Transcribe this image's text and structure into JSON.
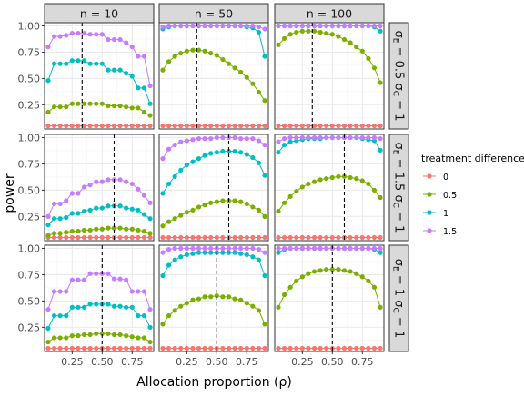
{
  "chart_data": {
    "type": "line",
    "facet_cols": [
      "n = 10",
      "n = 50",
      "n = 100"
    ],
    "facet_rows": [
      {
        "sigma_e": "0.5",
        "sigma_c": "1"
      },
      {
        "sigma_e": "1.5",
        "sigma_c": "1"
      },
      {
        "sigma_e": "1",
        "sigma_c": "1"
      }
    ],
    "xlabel": "Allocation proportion (ρ)",
    "ylabel": "power",
    "x": [
      0.05,
      0.1,
      0.15,
      0.2,
      0.25,
      0.3,
      0.35,
      0.4,
      0.45,
      0.5,
      0.55,
      0.6,
      0.65,
      0.7,
      0.75,
      0.8,
      0.85,
      0.9
    ],
    "xlim": [
      0.02,
      0.93
    ],
    "ylim": [
      0.02,
      1.03
    ],
    "xticks": [
      "0.25",
      "0.50",
      "0.75"
    ],
    "yticks": [
      "0.25",
      "0.50",
      "0.75",
      "1.00"
    ],
    "grid": true,
    "legend": {
      "title": "treatment difference",
      "position": "right",
      "entries": [
        "0",
        "0.5",
        "1",
        "1.5"
      ]
    },
    "colors": {
      "0": "#F8766D",
      "0.5": "#7CAE00",
      "1": "#00BFC4",
      "1.5": "#C77CFF",
      "strip": "#D9D9D9",
      "grid": "#EBEBEB",
      "border": "#333333"
    },
    "panels": [
      {
        "row": 0,
        "col": 0,
        "vline": 0.333,
        "series": [
          {
            "name": "0",
            "values": [
              0.05,
              0.05,
              0.05,
              0.05,
              0.05,
              0.05,
              0.05,
              0.05,
              0.05,
              0.05,
              0.05,
              0.05,
              0.05,
              0.05,
              0.05,
              0.05,
              0.05,
              0.05
            ]
          },
          {
            "name": "0.5",
            "values": [
              0.18,
              0.23,
              0.23,
              0.23,
              0.26,
              0.26,
              0.26,
              0.26,
              0.26,
              0.26,
              0.24,
              0.24,
              0.24,
              0.23,
              0.22,
              0.22,
              0.18,
              0.15
            ]
          },
          {
            "name": "1",
            "values": [
              0.48,
              0.64,
              0.64,
              0.64,
              0.67,
              0.67,
              0.67,
              0.64,
              0.64,
              0.64,
              0.58,
              0.58,
              0.58,
              0.55,
              0.52,
              0.41,
              0.41,
              0.26
            ]
          },
          {
            "name": "1.5",
            "values": [
              0.8,
              0.9,
              0.9,
              0.91,
              0.93,
              0.93,
              0.93,
              0.92,
              0.92,
              0.92,
              0.87,
              0.87,
              0.87,
              0.84,
              0.8,
              0.71,
              0.71,
              0.43
            ]
          }
        ]
      },
      {
        "row": 0,
        "col": 1,
        "vline": 0.333,
        "series": [
          {
            "name": "0",
            "values": [
              0.05,
              0.05,
              0.05,
              0.05,
              0.05,
              0.05,
              0.05,
              0.05,
              0.05,
              0.05,
              0.05,
              0.05,
              0.05,
              0.05,
              0.05,
              0.05,
              0.05,
              0.05
            ]
          },
          {
            "name": "0.5",
            "values": [
              0.58,
              0.66,
              0.71,
              0.74,
              0.76,
              0.77,
              0.77,
              0.76,
              0.74,
              0.72,
              0.68,
              0.64,
              0.6,
              0.56,
              0.51,
              0.45,
              0.37,
              0.29
            ]
          },
          {
            "name": "1",
            "values": [
              0.97,
              0.99,
              1.0,
              1.0,
              1.0,
              1.0,
              1.0,
              1.0,
              1.0,
              1.0,
              1.0,
              1.0,
              1.0,
              1.0,
              0.99,
              0.98,
              0.94,
              0.71
            ]
          },
          {
            "name": "1.5",
            "values": [
              0.99,
              1.0,
              1.0,
              1.0,
              1.0,
              1.0,
              1.0,
              1.0,
              1.0,
              1.0,
              1.0,
              1.0,
              1.0,
              1.0,
              1.0,
              1.0,
              0.99,
              0.97
            ]
          }
        ]
      },
      {
        "row": 0,
        "col": 2,
        "vline": 0.333,
        "series": [
          {
            "name": "0",
            "values": [
              0.05,
              0.05,
              0.05,
              0.05,
              0.05,
              0.05,
              0.05,
              0.05,
              0.05,
              0.05,
              0.05,
              0.05,
              0.05,
              0.05,
              0.05,
              0.05,
              0.05,
              0.05
            ]
          },
          {
            "name": "0.5",
            "values": [
              0.82,
              0.88,
              0.92,
              0.94,
              0.95,
              0.95,
              0.95,
              0.94,
              0.93,
              0.92,
              0.9,
              0.87,
              0.84,
              0.8,
              0.76,
              0.69,
              0.6,
              0.46
            ]
          },
          {
            "name": "1",
            "values": [
              1.0,
              1.0,
              1.0,
              1.0,
              1.0,
              1.0,
              1.0,
              1.0,
              1.0,
              1.0,
              1.0,
              1.0,
              1.0,
              1.0,
              1.0,
              1.0,
              0.99,
              0.95
            ]
          },
          {
            "name": "1.5",
            "values": [
              1.0,
              1.0,
              1.0,
              1.0,
              1.0,
              1.0,
              1.0,
              1.0,
              1.0,
              1.0,
              1.0,
              1.0,
              1.0,
              1.0,
              1.0,
              1.0,
              1.0,
              1.0
            ]
          }
        ]
      },
      {
        "row": 1,
        "col": 0,
        "vline": 0.6,
        "series": [
          {
            "name": "0",
            "values": [
              0.05,
              0.05,
              0.05,
              0.05,
              0.05,
              0.05,
              0.05,
              0.05,
              0.05,
              0.05,
              0.05,
              0.05,
              0.05,
              0.05,
              0.05,
              0.05,
              0.05,
              0.05
            ]
          },
          {
            "name": "0.5",
            "values": [
              0.07,
              0.09,
              0.09,
              0.1,
              0.11,
              0.11,
              0.12,
              0.12,
              0.13,
              0.13,
              0.14,
              0.14,
              0.14,
              0.13,
              0.13,
              0.12,
              0.11,
              0.09
            ]
          },
          {
            "name": "1",
            "values": [
              0.17,
              0.23,
              0.23,
              0.24,
              0.28,
              0.28,
              0.3,
              0.31,
              0.33,
              0.33,
              0.35,
              0.35,
              0.35,
              0.33,
              0.32,
              0.31,
              0.27,
              0.23
            ]
          },
          {
            "name": "1.5",
            "values": [
              0.25,
              0.37,
              0.37,
              0.4,
              0.47,
              0.47,
              0.53,
              0.55,
              0.58,
              0.58,
              0.6,
              0.6,
              0.6,
              0.58,
              0.56,
              0.51,
              0.45,
              0.38
            ]
          }
        ]
      },
      {
        "row": 1,
        "col": 1,
        "vline": 0.6,
        "series": [
          {
            "name": "0",
            "values": [
              0.05,
              0.05,
              0.05,
              0.05,
              0.05,
              0.05,
              0.05,
              0.05,
              0.05,
              0.05,
              0.05,
              0.05,
              0.05,
              0.05,
              0.05,
              0.05,
              0.05,
              0.05
            ]
          },
          {
            "name": "0.5",
            "values": [
              0.16,
              0.2,
              0.23,
              0.26,
              0.29,
              0.31,
              0.34,
              0.36,
              0.38,
              0.39,
              0.4,
              0.4,
              0.4,
              0.39,
              0.37,
              0.34,
              0.31,
              0.25
            ]
          },
          {
            "name": "1",
            "values": [
              0.47,
              0.56,
              0.63,
              0.69,
              0.74,
              0.77,
              0.8,
              0.83,
              0.85,
              0.86,
              0.87,
              0.87,
              0.87,
              0.86,
              0.84,
              0.81,
              0.76,
              0.64
            ]
          },
          {
            "name": "1.5",
            "values": [
              0.8,
              0.89,
              0.93,
              0.96,
              0.97,
              0.98,
              0.99,
              0.99,
              0.99,
              1.0,
              1.0,
              1.0,
              1.0,
              0.99,
              0.99,
              0.99,
              0.97,
              0.93
            ]
          }
        ]
      },
      {
        "row": 1,
        "col": 2,
        "vline": 0.6,
        "series": [
          {
            "name": "0",
            "values": [
              0.05,
              0.05,
              0.05,
              0.05,
              0.05,
              0.05,
              0.05,
              0.05,
              0.05,
              0.05,
              0.05,
              0.05,
              0.05,
              0.05,
              0.05,
              0.05,
              0.05,
              0.05
            ]
          },
          {
            "name": "0.5",
            "values": [
              0.3,
              0.38,
              0.44,
              0.49,
              0.53,
              0.56,
              0.58,
              0.6,
              0.61,
              0.62,
              0.63,
              0.63,
              0.62,
              0.61,
              0.59,
              0.56,
              0.5,
              0.43
            ]
          },
          {
            "name": "1",
            "values": [
              0.86,
              0.93,
              0.96,
              0.97,
              0.98,
              0.99,
              0.99,
              0.99,
              1.0,
              1.0,
              1.0,
              1.0,
              1.0,
              1.0,
              0.99,
              0.98,
              0.97,
              0.88
            ]
          },
          {
            "name": "1.5",
            "values": [
              0.96,
              0.99,
              1.0,
              1.0,
              1.0,
              1.0,
              1.0,
              1.0,
              1.0,
              1.0,
              1.0,
              1.0,
              1.0,
              1.0,
              1.0,
              1.0,
              1.0,
              0.99
            ]
          }
        ]
      },
      {
        "row": 2,
        "col": 0,
        "vline": 0.5,
        "series": [
          {
            "name": "0",
            "values": [
              0.05,
              0.05,
              0.05,
              0.05,
              0.05,
              0.05,
              0.05,
              0.05,
              0.05,
              0.05,
              0.05,
              0.05,
              0.05,
              0.05,
              0.05,
              0.05,
              0.05,
              0.05
            ]
          },
          {
            "name": "0.5",
            "values": [
              0.11,
              0.15,
              0.15,
              0.15,
              0.17,
              0.17,
              0.18,
              0.18,
              0.19,
              0.19,
              0.19,
              0.18,
              0.18,
              0.17,
              0.16,
              0.15,
              0.15,
              0.11
            ]
          },
          {
            "name": "1",
            "values": [
              0.24,
              0.36,
              0.36,
              0.36,
              0.44,
              0.44,
              0.44,
              0.47,
              0.47,
              0.47,
              0.47,
              0.45,
              0.45,
              0.44,
              0.44,
              0.36,
              0.36,
              0.25
            ]
          },
          {
            "name": "1.5",
            "values": [
              0.42,
              0.59,
              0.59,
              0.59,
              0.7,
              0.7,
              0.7,
              0.76,
              0.76,
              0.76,
              0.76,
              0.71,
              0.71,
              0.7,
              0.59,
              0.59,
              0.59,
              0.42
            ]
          }
        ]
      },
      {
        "row": 2,
        "col": 1,
        "vline": 0.5,
        "series": [
          {
            "name": "0",
            "values": [
              0.05,
              0.05,
              0.05,
              0.05,
              0.05,
              0.05,
              0.05,
              0.05,
              0.05,
              0.05,
              0.05,
              0.05,
              0.05,
              0.05,
              0.05,
              0.05,
              0.05,
              0.05
            ]
          },
          {
            "name": "0.5",
            "values": [
              0.28,
              0.36,
              0.41,
              0.45,
              0.48,
              0.51,
              0.52,
              0.54,
              0.54,
              0.55,
              0.54,
              0.54,
              0.52,
              0.51,
              0.48,
              0.45,
              0.41,
              0.28
            ]
          },
          {
            "name": "1",
            "values": [
              0.74,
              0.84,
              0.89,
              0.92,
              0.94,
              0.95,
              0.96,
              0.96,
              0.96,
              0.96,
              0.96,
              0.96,
              0.96,
              0.95,
              0.94,
              0.92,
              0.89,
              0.74
            ]
          },
          {
            "name": "1.5",
            "values": [
              0.96,
              0.99,
              1.0,
              1.0,
              1.0,
              1.0,
              1.0,
              1.0,
              1.0,
              1.0,
              1.0,
              1.0,
              1.0,
              1.0,
              1.0,
              1.0,
              0.99,
              0.96
            ]
          }
        ]
      },
      {
        "row": 2,
        "col": 2,
        "vline": 0.5,
        "series": [
          {
            "name": "0",
            "values": [
              0.05,
              0.05,
              0.05,
              0.05,
              0.05,
              0.05,
              0.05,
              0.05,
              0.05,
              0.05,
              0.05,
              0.05,
              0.05,
              0.05,
              0.05,
              0.05,
              0.05,
              0.05
            ]
          },
          {
            "name": "0.5",
            "values": [
              0.44,
              0.56,
              0.63,
              0.69,
              0.73,
              0.76,
              0.78,
              0.79,
              0.8,
              0.8,
              0.8,
              0.79,
              0.78,
              0.76,
              0.73,
              0.69,
              0.63,
              0.44
            ]
          },
          {
            "name": "1",
            "values": [
              0.96,
              0.99,
              1.0,
              1.0,
              1.0,
              1.0,
              1.0,
              1.0,
              1.0,
              1.0,
              1.0,
              1.0,
              1.0,
              1.0,
              1.0,
              1.0,
              0.99,
              0.96
            ]
          },
          {
            "name": "1.5",
            "values": [
              1.0,
              1.0,
              1.0,
              1.0,
              1.0,
              1.0,
              1.0,
              1.0,
              1.0,
              1.0,
              1.0,
              1.0,
              1.0,
              1.0,
              1.0,
              1.0,
              1.0,
              1.0
            ]
          }
        ]
      }
    ]
  }
}
